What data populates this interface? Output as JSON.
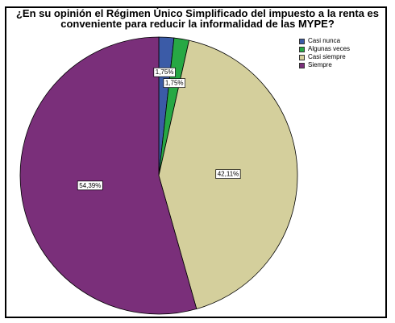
{
  "chart_data": {
    "type": "pie",
    "title_line1": "¿En su opinión el Régimen Único Simplificado del impuesto a la renta es",
    "title_line2": "conveniente para reducir la informalidad de las MYPE?",
    "legend_position": "top-right",
    "categories": [
      "Casi nunca",
      "Algunas veces",
      "Casi siempre",
      "Siempre"
    ],
    "values": [
      1.75,
      1.75,
      42.11,
      54.39
    ],
    "labels": [
      "1,75%",
      "1,75%",
      "42,11%",
      "54,39%"
    ],
    "colors": [
      "#3b5ba7",
      "#27a844",
      "#d4cf9c",
      "#7a2f7a"
    ]
  }
}
